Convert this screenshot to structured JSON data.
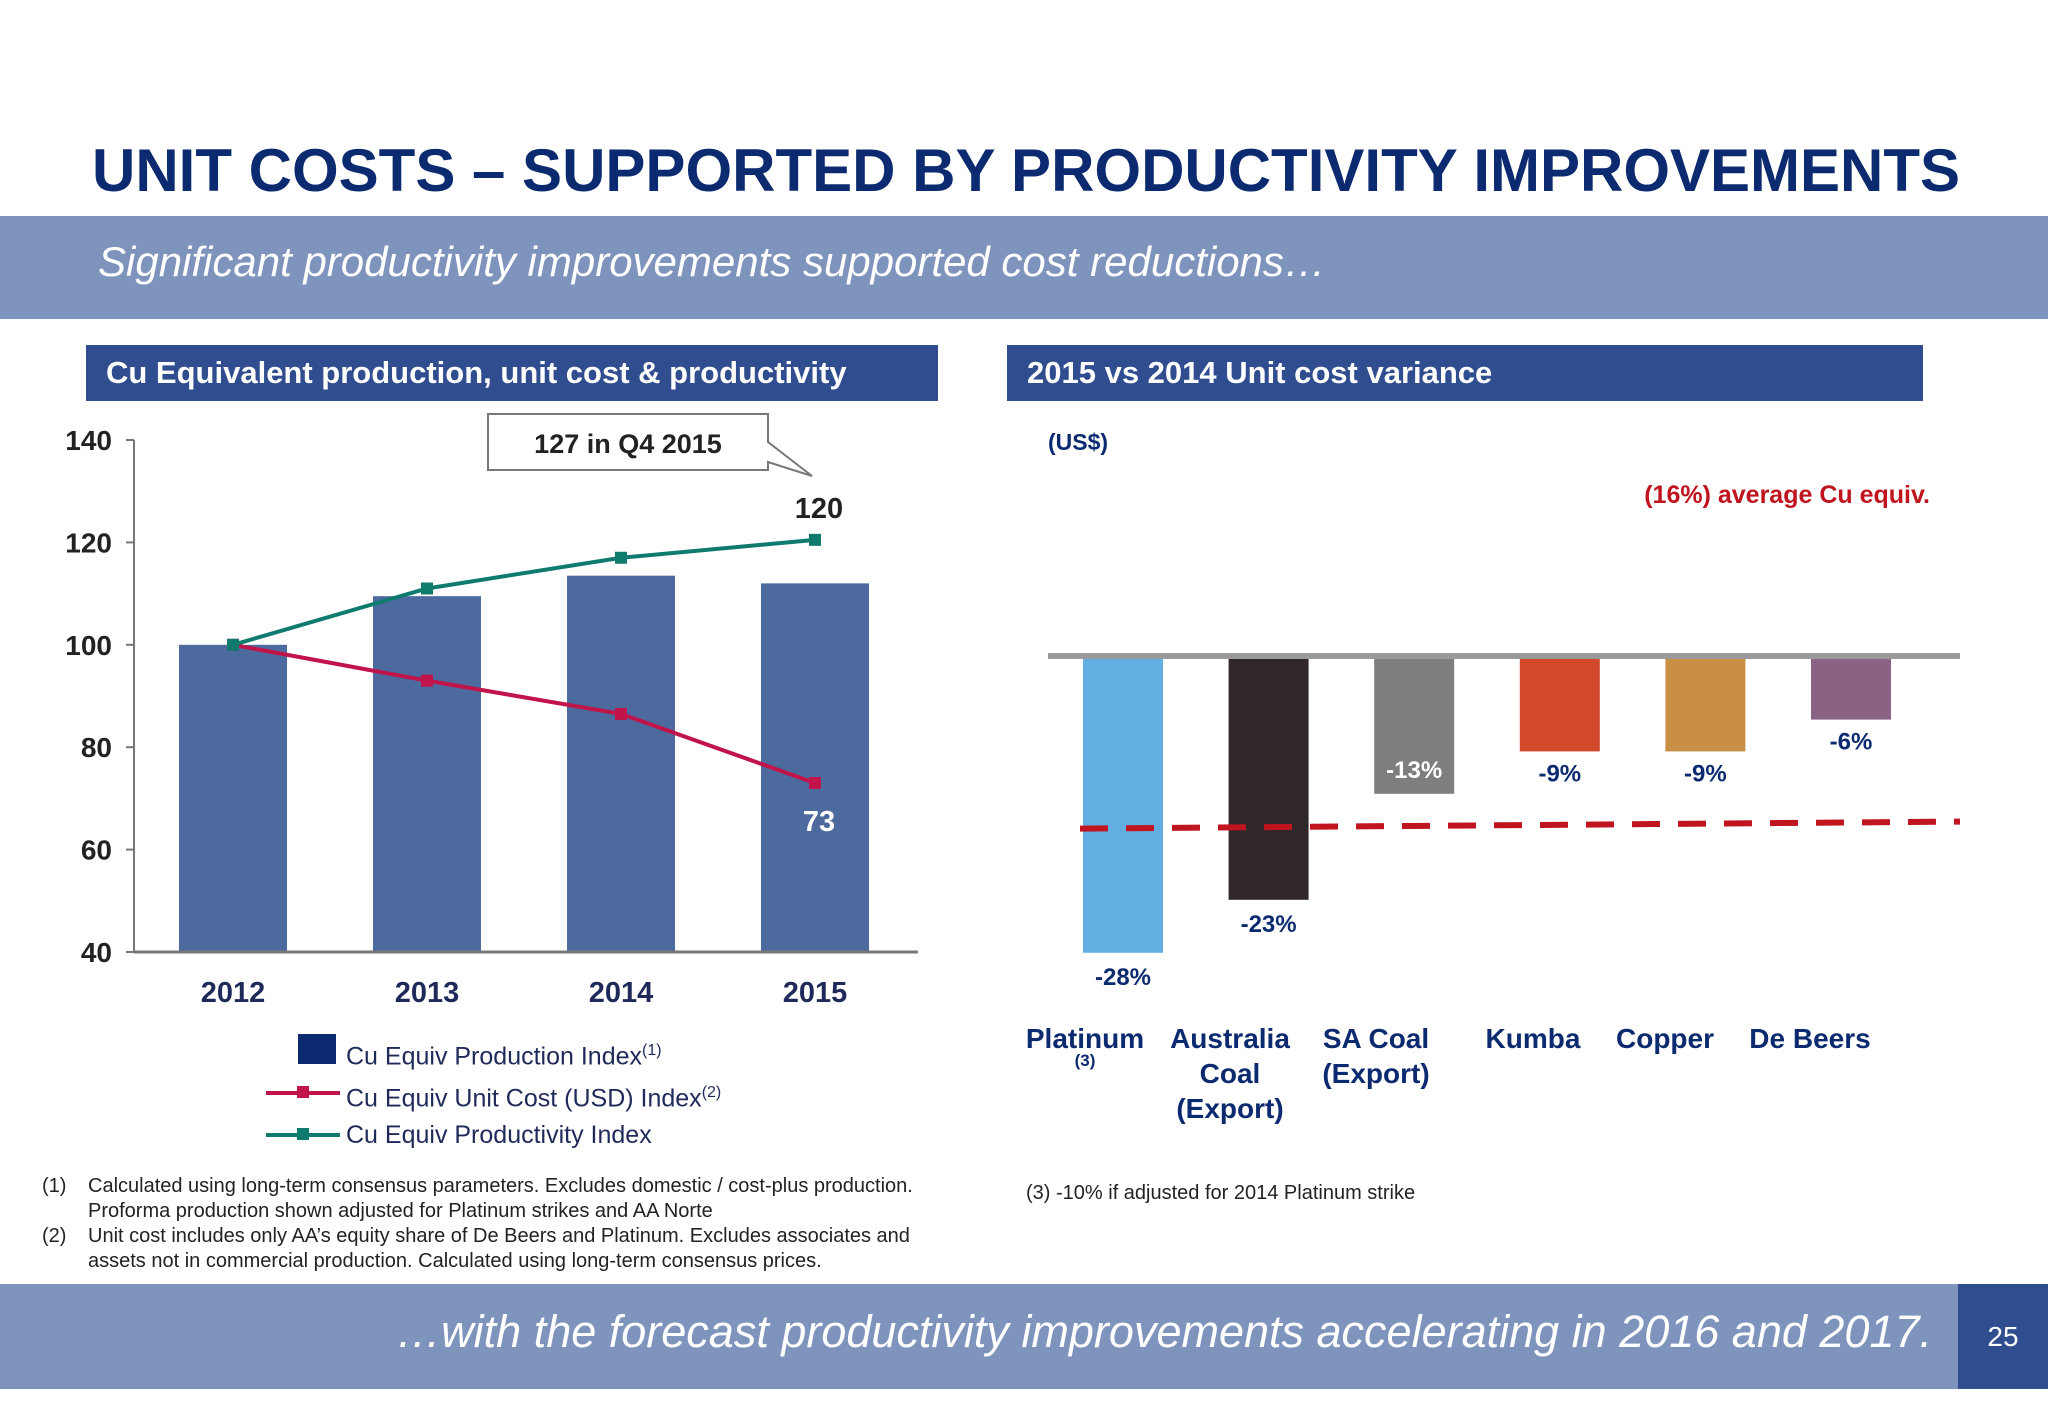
{
  "title": "UNIT COSTS – SUPPORTED BY PRODUCTIVITY IMPROVEMENTS",
  "subtitle": "Significant productivity improvements supported cost reductions…",
  "left_panel": {
    "header": "Cu Equivalent production, unit cost & productivity",
    "callout": "127 in Q4 2015",
    "legend": {
      "production": "Cu Equiv Production Index",
      "production_sup": "(1)",
      "unit_cost": "Cu Equiv Unit Cost (USD) Index",
      "unit_cost_sup": "(2)",
      "productivity": "Cu Equiv Productivity Index"
    }
  },
  "right_panel": {
    "header": "2015 vs 2014 Unit cost variance",
    "unit": "(US$)",
    "average_label": "(16%) average Cu equiv.",
    "platinum_footnote_mark": "(3)"
  },
  "notes": [
    {
      "num": "(1)",
      "text": "Calculated using long-term consensus parameters. Excludes domestic / cost-plus production. Proforma production shown adjusted for Platinum strikes and AA Norte"
    },
    {
      "num": "(2)",
      "text": "Unit cost includes only AA’s equity share of De Beers and Platinum. Excludes associates and assets not in commercial production. Calculated using long-term consensus prices."
    }
  ],
  "note3": "(3) -10% if adjusted for 2014 Platinum strike",
  "footer": "…with the forecast productivity improvements accelerating in 2016 and 2017.",
  "page_number": "25",
  "colors": {
    "title": "#0b2a6f",
    "band": "#7f94bd",
    "header": "#2f4d8f",
    "bar": "#4d6a9e",
    "unit_cost_line": "#c0144a",
    "productivity_line": "#0f7a6e",
    "average_line": "#c0141e"
  },
  "chart_data": [
    {
      "type": "bar",
      "categories": [
        "2012",
        "2013",
        "2014",
        "2015"
      ],
      "ylim": [
        40,
        140
      ],
      "yticks": [
        40,
        60,
        80,
        100,
        120,
        140
      ],
      "series": [
        {
          "name": "Cu Equiv Production Index",
          "type": "bar",
          "values": [
            100,
            109.5,
            113.5,
            112
          ],
          "color": "#4d6a9e"
        },
        {
          "name": "Cu Equiv Unit Cost (USD) Index",
          "type": "line",
          "values": [
            100,
            93,
            86.5,
            73
          ],
          "color": "#c0144a"
        },
        {
          "name": "Cu Equiv Productivity Index",
          "type": "line",
          "values": [
            100,
            111,
            117,
            120.5
          ],
          "color": "#0f7a6e"
        }
      ],
      "data_labels": [
        {
          "series": "Cu Equiv Productivity Index",
          "category": "2015",
          "text": "120"
        },
        {
          "series": "Cu Equiv Unit Cost (USD) Index",
          "category": "2015",
          "text": "73"
        }
      ],
      "grid": false,
      "legend_position": "bottom"
    },
    {
      "type": "bar",
      "categories": [
        "Platinum",
        "Australia Coal (Export)",
        "SA Coal (Export)",
        "Kumba",
        "Copper",
        "De Beers"
      ],
      "values": [
        -28,
        -23,
        -13,
        -9,
        -9,
        -6
      ],
      "labels": [
        "-28%",
        "-23%",
        "-13%",
        "-9%",
        "-9%",
        "-6%"
      ],
      "colors": [
        "#62aee3",
        "#302728",
        "#7f7d80",
        "#d2482a",
        "#c98f45",
        "#8a6384"
      ],
      "reference_line": {
        "value": -16,
        "label": "(16%) average Cu equiv."
      },
      "unit": "(US$)",
      "ylim": [
        -30,
        0
      ],
      "grid": false
    }
  ]
}
